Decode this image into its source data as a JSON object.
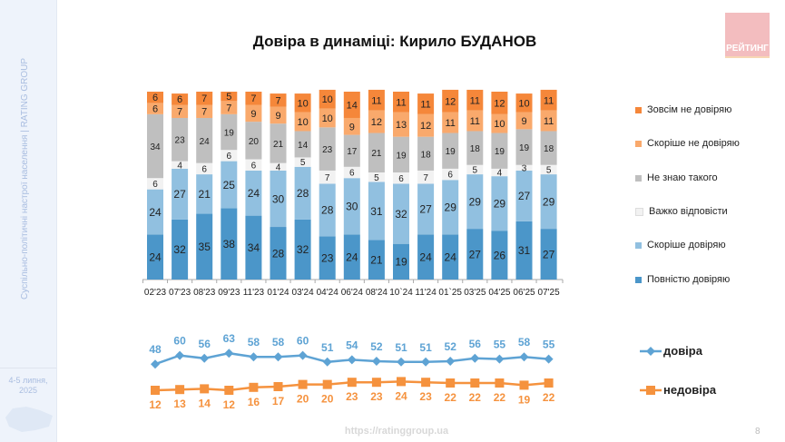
{
  "title": "Довіра в динаміці: Кирило БУДАНОВ",
  "logo_text": "РЕЙТИНГ",
  "sidebar": {
    "caption": "Суспільно-політичні настрої населення | RATING GROUP",
    "date_line1": "4-5 липня,",
    "date_line2": "2025"
  },
  "footer": {
    "url": "https://ratinggroup.ua",
    "page_number": "8"
  },
  "chart_data": [
    {
      "type": "bar",
      "stacked": true,
      "categories": [
        "02'23",
        "07'23",
        "08'23",
        "09'23",
        "11'23",
        "01'24",
        "03'24",
        "04'24",
        "06'24",
        "08'24",
        "10`24",
        "11'24",
        "01`25",
        "03'25",
        "04'25",
        "06'25",
        "07'25"
      ],
      "series": [
        {
          "name": "Повністю довіряю",
          "color": "#4b96c9",
          "values": [
            24,
            32,
            35,
            38,
            34,
            28,
            32,
            23,
            24,
            21,
            19,
            24,
            24,
            27,
            26,
            31,
            27
          ]
        },
        {
          "name": "Скоріше довіряю",
          "color": "#91c0e0",
          "values": [
            24,
            27,
            21,
            25,
            24,
            30,
            28,
            28,
            30,
            31,
            32,
            27,
            29,
            29,
            29,
            27,
            29
          ]
        },
        {
          "name": "Важко відповісти",
          "color": "#f2f2f2",
          "values": [
            6,
            4,
            6,
            6,
            6,
            4,
            5,
            7,
            6,
            5,
            6,
            7,
            6,
            5,
            4,
            3,
            5
          ]
        },
        {
          "name": "Не знаю такого",
          "color": "#bfbfbf",
          "values": [
            34,
            23,
            24,
            19,
            20,
            21,
            14,
            23,
            17,
            21,
            19,
            18,
            19,
            18,
            19,
            19,
            18
          ]
        },
        {
          "name": "Скоріше не довіряю",
          "color": "#f9a96c",
          "values": [
            6,
            7,
            7,
            7,
            9,
            9,
            10,
            10,
            9,
            12,
            13,
            12,
            11,
            11,
            10,
            9,
            11
          ]
        },
        {
          "name": "Зовсім не довіряю",
          "color": "#f5873a",
          "values": [
            6,
            6,
            7,
            5,
            7,
            7,
            10,
            10,
            14,
            11,
            11,
            11,
            12,
            11,
            12,
            10,
            11
          ]
        }
      ],
      "legend": "right",
      "ylim": [
        0,
        100
      ]
    },
    {
      "type": "line",
      "categories": [
        "02'23",
        "07'23",
        "08'23",
        "09'23",
        "11'23",
        "01'24",
        "03'24",
        "04'24",
        "06'24",
        "08'24",
        "10`24",
        "11'24",
        "01`25",
        "03'25",
        "04'25",
        "06'25",
        "07'25"
      ],
      "series": [
        {
          "name": "довіра",
          "color": "#5ea3d4",
          "marker": "diamond",
          "values": [
            48,
            60,
            56,
            63,
            58,
            58,
            60,
            51,
            54,
            52,
            51,
            51,
            52,
            56,
            55,
            58,
            55
          ]
        },
        {
          "name": "недовіра",
          "color": "#f5923e",
          "marker": "square",
          "values": [
            12,
            13,
            14,
            12,
            16,
            17,
            20,
            20,
            23,
            23,
            24,
            23,
            22,
            22,
            22,
            19,
            22
          ]
        }
      ],
      "legend": "right"
    }
  ]
}
